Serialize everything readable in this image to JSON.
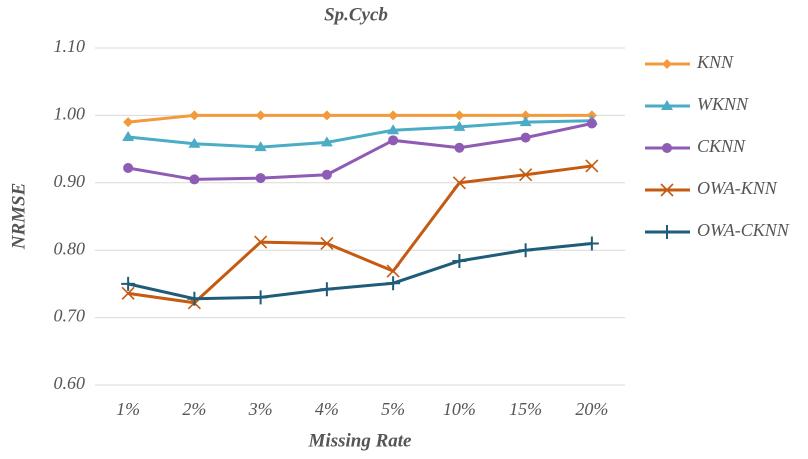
{
  "chart_data": {
    "type": "line",
    "title": "Sp.Cycb",
    "xlabel": "Missing Rate",
    "ylabel": "NRMSE",
    "categories": [
      "1%",
      "2%",
      "3%",
      "4%",
      "5%",
      "10%",
      "15%",
      "20%"
    ],
    "ylim": [
      0.6,
      1.1
    ],
    "yticks": [
      {
        "value": 0.6,
        "label": "0.60"
      },
      {
        "value": 0.7,
        "label": "0.70"
      },
      {
        "value": 0.8,
        "label": "0.80"
      },
      {
        "value": 0.9,
        "label": "0.90"
      },
      {
        "value": 1.0,
        "label": "1.00"
      },
      {
        "value": 1.1,
        "label": "1.10"
      }
    ],
    "grid": true,
    "legend": "right",
    "series": [
      {
        "name": "KNN",
        "color": "#f39a3c",
        "marker": "diamond",
        "values": [
          0.99,
          1.0,
          1.0,
          1.0,
          1.0,
          1.0,
          1.0,
          1.0
        ]
      },
      {
        "name": "WKNN",
        "color": "#4bacc6",
        "marker": "triangle",
        "values": [
          0.968,
          0.958,
          0.953,
          0.96,
          0.978,
          0.983,
          0.99,
          0.992
        ]
      },
      {
        "name": "CKNN",
        "color": "#8e5bb5",
        "marker": "circle",
        "values": [
          0.922,
          0.905,
          0.907,
          0.912,
          0.963,
          0.952,
          0.967,
          0.988
        ]
      },
      {
        "name": "OWA-KNN",
        "color": "#c55a11",
        "marker": "x",
        "values": [
          0.736,
          0.722,
          0.812,
          0.81,
          0.769,
          0.9,
          0.912,
          0.925
        ]
      },
      {
        "name": "OWA-CKNN",
        "color": "#1f5c7a",
        "marker": "plus",
        "values": [
          0.75,
          0.728,
          0.73,
          0.742,
          0.751,
          0.784,
          0.8,
          0.81
        ]
      }
    ]
  }
}
